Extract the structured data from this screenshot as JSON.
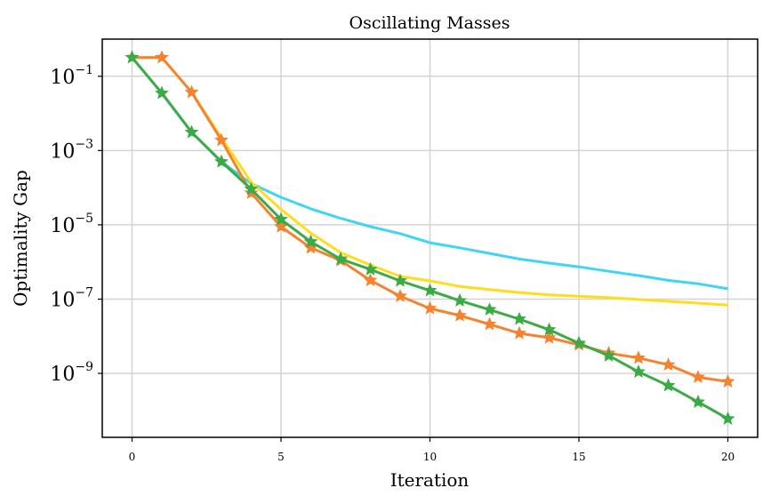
{
  "chart_data": {
    "type": "line",
    "title": "Oscillating Masses",
    "xlabel": "Iteration",
    "ylabel": "Optimality Gap",
    "xscale": "linear",
    "yscale": "log",
    "xlim": [
      -1,
      21
    ],
    "ylim": [
      1.9e-11,
      1.0
    ],
    "grid": true,
    "legend": "none",
    "x_ticks": [
      0,
      5,
      10,
      15,
      20
    ],
    "x_tick_labels": [
      "0",
      "5",
      "10",
      "15",
      "20"
    ],
    "y_ticks": [
      0.1,
      0.001,
      1e-05,
      1e-07,
      1e-09
    ],
    "y_tick_labels": [
      {
        "base": "10",
        "exp": "−1"
      },
      {
        "base": "10",
        "exp": "−3"
      },
      {
        "base": "10",
        "exp": "−5"
      },
      {
        "base": "10",
        "exp": "−7"
      },
      {
        "base": "10",
        "exp": "−9"
      }
    ],
    "x": [
      0,
      1,
      2,
      3,
      4,
      5,
      6,
      7,
      8,
      9,
      10,
      11,
      12,
      13,
      14,
      15,
      16,
      17,
      18,
      19,
      20
    ],
    "series": [
      {
        "color": "#3fd5f5",
        "marker": "none",
        "values": [
          0.32,
          0.035,
          0.0031,
          0.0005,
          0.00013,
          5.5e-05,
          2.7e-05,
          1.5e-05,
          8.9e-06,
          5.8e-06,
          3.3e-06,
          2.4e-06,
          1.7e-06,
          1.2e-06,
          9.3e-07,
          7.4e-07,
          5.6e-07,
          4.3e-07,
          3.2e-07,
          2.6e-07,
          1.9e-07
        ]
      },
      {
        "color": "#ffdd1a",
        "marker": "none",
        "values": [
          0.32,
          0.32,
          0.037,
          0.0022,
          0.00014,
          2.6e-05,
          6e-06,
          1.8e-06,
          8.3e-07,
          4.1e-07,
          3.1e-07,
          2.2e-07,
          1.8e-07,
          1.5e-07,
          1.3e-07,
          1.2e-07,
          1.1e-07,
          9.8e-08,
          8.7e-08,
          7.8e-08,
          6.9e-08
        ]
      },
      {
        "color": "#f5822f",
        "marker": "star",
        "values": [
          0.32,
          0.32,
          0.037,
          0.0019,
          7.2e-05,
          8.9e-06,
          2.4e-06,
          1.1e-06,
          3.2e-07,
          1.2e-07,
          5.6e-08,
          3.6e-08,
          2.1e-08,
          1.2e-08,
          9.1e-09,
          5.9e-09,
          3.5e-09,
          2.6e-09,
          1.7e-09,
          7.9e-10,
          6e-10
        ]
      },
      {
        "color": "#3aab45",
        "marker": "star",
        "values": [
          0.32,
          0.035,
          0.0031,
          0.0005,
          9.1e-05,
          1.4e-05,
          3.5e-06,
          1.2e-06,
          6.3e-07,
          3.1e-07,
          1.7e-07,
          9.1e-08,
          5.2e-08,
          2.9e-08,
          1.5e-08,
          6.5e-09,
          3e-09,
          1.1e-09,
          4.7e-10,
          1.7e-10,
          6e-11
        ]
      }
    ]
  }
}
